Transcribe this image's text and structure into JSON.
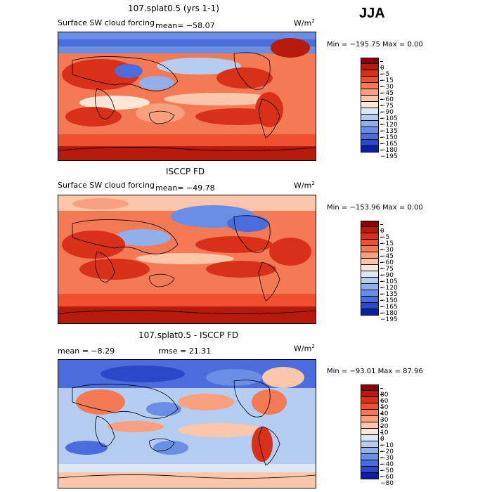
{
  "season": "JJA",
  "panels": [
    {
      "title": "107.splat0.5 (yrs 1-1)",
      "field": "Surface SW cloud forcing",
      "mean": "mean=  −58.07",
      "units": "W/m",
      "minmax": "Min = −195.75  Max =    0.00",
      "levels": [
        "0",
        "−5",
        "−15",
        "−30",
        "−45",
        "−60",
        "−75",
        "−90",
        "−105",
        "−120",
        "−135",
        "−150",
        "−165",
        "−180",
        "−195"
      ],
      "colors": [
        "#8b0000",
        "#b51a0a",
        "#d9301a",
        "#ee5030",
        "#f47a55",
        "#f9a07e",
        "#fcc6aa",
        "#fbe6d8",
        "#dce8f6",
        "#b5cdf0",
        "#8fb0ea",
        "#6a8ee4",
        "#4a6ddb",
        "#2a48c8",
        "#0a1fa8"
      ]
    },
    {
      "title": "ISCCP FD",
      "field": "Surface SW cloud forcing",
      "mean": "mean=  −49.78",
      "units": "W/m",
      "minmax": "Min = −153.96  Max =    0.00",
      "levels": [
        "0",
        "−5",
        "−15",
        "−30",
        "−45",
        "−60",
        "−75",
        "−90",
        "−105",
        "−120",
        "−135",
        "−150",
        "−165",
        "−180",
        "−195"
      ],
      "colors": [
        "#8b0000",
        "#b51a0a",
        "#d9301a",
        "#ee5030",
        "#f47a55",
        "#f9a07e",
        "#fcc6aa",
        "#fbe6d8",
        "#dce8f6",
        "#b5cdf0",
        "#8fb0ea",
        "#6a8ee4",
        "#4a6ddb",
        "#2a48c8",
        "#0a1fa8"
      ]
    },
    {
      "title": "107.splat0.5 - ISCCP FD",
      "mean": "mean =    −8.29",
      "rmse": "rmse =   21.31",
      "units": "W/m",
      "minmax": "Min = −93.01  Max =   87.96",
      "levels": [
        "80",
        "60",
        "50",
        "40",
        "30",
        "20",
        "10",
        "0",
        "−10",
        "−20",
        "−30",
        "−40",
        "−50",
        "−60",
        "−80"
      ],
      "colors": [
        "#8b0000",
        "#b51a0a",
        "#d9301a",
        "#ee5030",
        "#f47a55",
        "#f9a07e",
        "#fcc6aa",
        "#fbe6d8",
        "#dce8f6",
        "#b5cdf0",
        "#8fb0ea",
        "#6a8ee4",
        "#4a6ddb",
        "#2a48c8",
        "#0a1fa8"
      ]
    }
  ]
}
